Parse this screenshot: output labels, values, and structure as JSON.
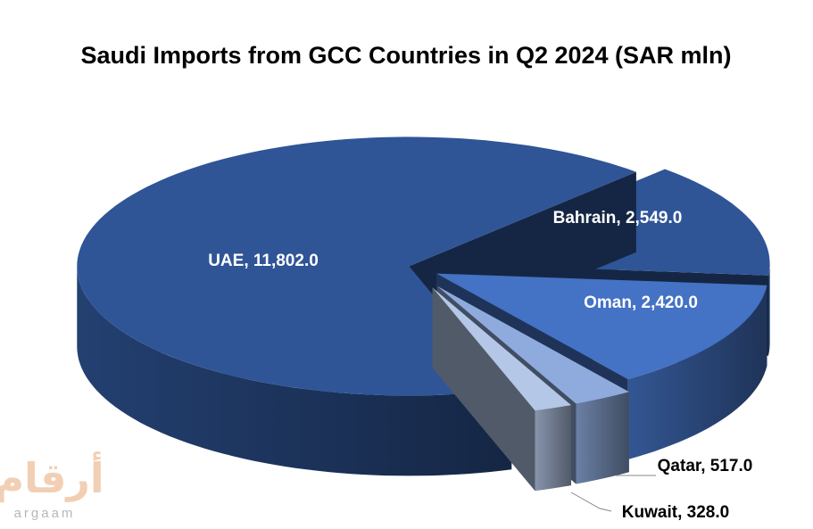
{
  "chart_data": {
    "type": "pie3d",
    "title": "Saudi Imports from GCC Countries in Q2 2024 (SAR mln)",
    "categories": [
      "UAE",
      "Bahrain",
      "Oman",
      "Qatar",
      "Kuwait"
    ],
    "values": [
      11802.0,
      2549.0,
      2420.0,
      517.0,
      328.0
    ],
    "value_labels": [
      "11,802.0",
      "2,549.0",
      "2,420.0",
      "517.0",
      "328.0"
    ],
    "colors": [
      "#2f5597",
      "#2f5597",
      "#4472c4",
      "#8faadc",
      "#b4c7e7"
    ],
    "logo": {
      "arabic": "أرقام",
      "latin": "argaam"
    }
  }
}
